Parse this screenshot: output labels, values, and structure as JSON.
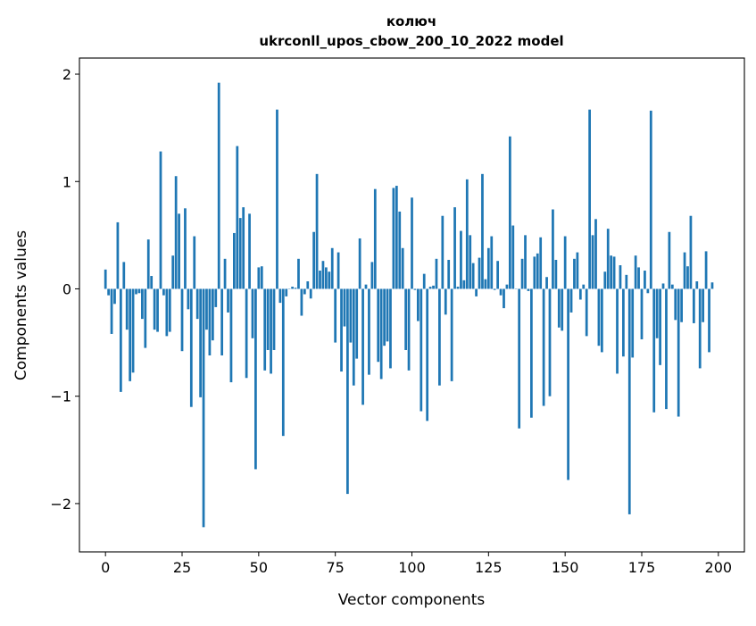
{
  "chart_data": {
    "type": "bar",
    "title_lines": [
      "колюч",
      "ukrconll_upos_cbow_200_10_2022 model"
    ],
    "xlabel": "Vector components",
    "ylabel": "Components values",
    "xlim": [
      -8.5,
      208.5
    ],
    "ylim": [
      -2.45,
      2.15
    ],
    "xticks": [
      0,
      25,
      50,
      75,
      100,
      125,
      150,
      175,
      200
    ],
    "xtick_labels": [
      "0",
      "25",
      "50",
      "75",
      "100",
      "125",
      "150",
      "175",
      "200"
    ],
    "yticks": [
      -2,
      -1,
      0,
      1,
      2
    ],
    "ytick_labels": [
      "−2",
      "−1",
      "0",
      "1",
      "2"
    ],
    "grid": false,
    "bar_color": "#1f77b4",
    "values": [
      0.18,
      -0.06,
      -0.42,
      -0.14,
      0.62,
      -0.96,
      0.25,
      -0.38,
      -0.86,
      -0.78,
      -0.05,
      -0.04,
      -0.28,
      -0.55,
      0.46,
      0.12,
      -0.38,
      -0.4,
      1.28,
      -0.06,
      -0.44,
      -0.4,
      0.31,
      1.05,
      0.7,
      -0.58,
      0.75,
      -0.19,
      -1.1,
      0.49,
      -0.28,
      -1.01,
      -2.22,
      -0.38,
      -0.62,
      -0.48,
      -0.17,
      1.92,
      -0.62,
      0.28,
      -0.22,
      -0.87,
      0.52,
      1.33,
      0.66,
      0.76,
      -0.83,
      0.7,
      -0.46,
      -1.68,
      0.2,
      0.21,
      -0.76,
      -0.57,
      -0.79,
      -0.57,
      1.67,
      -0.13,
      -1.37,
      -0.07,
      0.0,
      0.02,
      0.01,
      0.28,
      -0.25,
      -0.05,
      0.07,
      -0.09,
      0.53,
      1.07,
      0.17,
      0.26,
      0.2,
      0.16,
      0.38,
      -0.5,
      0.34,
      -0.77,
      -0.35,
      -1.91,
      -0.5,
      -0.9,
      -0.65,
      0.47,
      -1.08,
      0.04,
      -0.8,
      0.25,
      0.93,
      -0.68,
      -0.84,
      -0.53,
      -0.49,
      -0.74,
      0.94,
      0.96,
      0.72,
      0.38,
      -0.57,
      -0.76,
      0.85,
      -0.01,
      -0.3,
      -1.14,
      0.14,
      -1.23,
      0.02,
      0.03,
      0.28,
      -0.9,
      0.68,
      -0.24,
      0.27,
      -0.86,
      0.76,
      0.02,
      0.54,
      0.08,
      1.02,
      0.5,
      0.24,
      -0.07,
      0.29,
      1.07,
      0.09,
      0.38,
      0.49,
      -0.01,
      0.26,
      -0.06,
      -0.18,
      0.04,
      1.42,
      0.59,
      0.0,
      -1.3,
      0.28,
      0.5,
      -0.02,
      -1.2,
      0.3,
      0.33,
      0.48,
      -1.09,
      0.11,
      -1.0,
      0.74,
      0.27,
      -0.36,
      -0.39,
      0.49,
      -1.78,
      -0.22,
      0.28,
      0.34,
      -0.1,
      0.04,
      -0.44,
      1.67,
      0.5,
      0.65,
      -0.53,
      -0.59,
      0.16,
      0.56,
      0.31,
      0.3,
      -0.79,
      0.22,
      -0.63,
      0.13,
      -2.1,
      -0.64,
      0.31,
      0.2,
      -0.47,
      0.17,
      -0.04,
      1.66,
      -1.15,
      -0.46,
      -0.71,
      0.05,
      -1.12,
      0.53,
      0.04,
      -0.29,
      -1.19,
      -0.31,
      0.34,
      0.21,
      0.68,
      -0.32,
      0.07,
      -0.74,
      -0.31,
      0.35,
      -0.59,
      0.06
    ]
  }
}
